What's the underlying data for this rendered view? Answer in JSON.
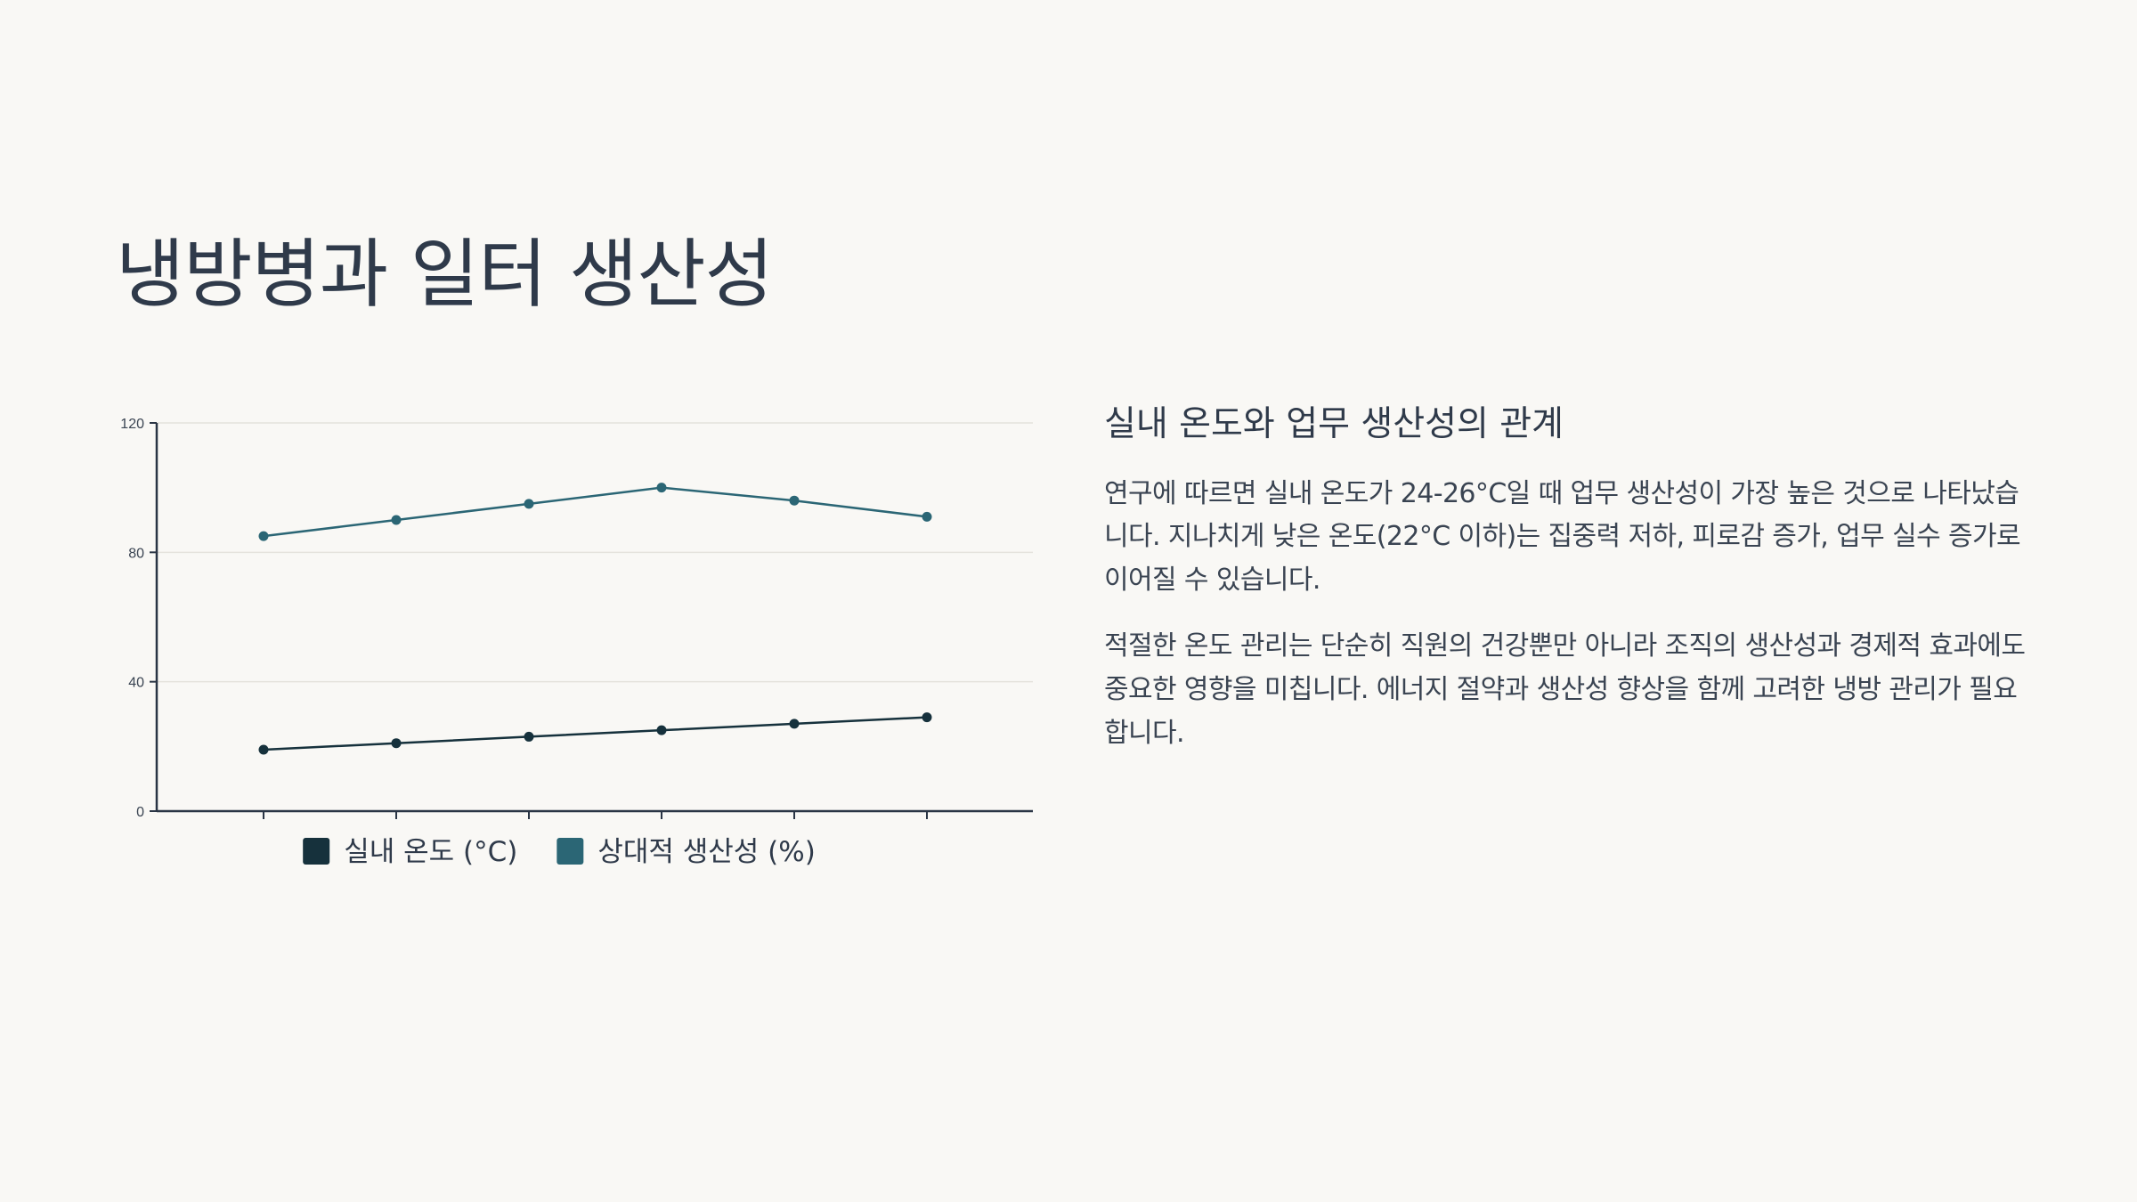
{
  "slide": {
    "title": "냉방병과 일터 생산성"
  },
  "text_panel": {
    "heading": "실내 온도와 업무 생산성의 관계",
    "paragraphs": [
      "연구에 따르면 실내 온도가 24-26°C일 때 업무 생산성이 가장 높은 것으로 나타났습니다. 지나치게 낮은 온도(22°C 이하)는 집중력 저하, 피로감 증가, 업무 실수 증가로 이어질 수 있습니다.",
      "적절한 온도 관리는 단순히 직원의 건강뿐만 아니라 조직의 생산성과 경제적 효과에도 중요한 영향을 미칩니다. 에너지 절약과 생산성 향상을 함께 고려한 냉방 관리가 필요합니다."
    ]
  },
  "colors": {
    "background": "#f9f8f5",
    "text": "#2f3a4a",
    "series_temperature": "#16313c",
    "series_productivity": "#2b6675",
    "grid": "#e4e2dc",
    "axis": "#2a3545"
  },
  "chart_data": {
    "type": "line",
    "x": [
      "",
      "",
      "",
      "",
      "",
      ""
    ],
    "series": [
      {
        "name": "실내 온도 (°C)",
        "values": [
          19,
          21,
          23,
          25,
          27,
          29
        ]
      },
      {
        "name": "상대적 생산성 (%)",
        "values": [
          85,
          90,
          95,
          100,
          96,
          91
        ]
      }
    ],
    "ylim": [
      0,
      120
    ],
    "yticks": [
      0,
      40,
      80,
      120
    ],
    "grid": true,
    "legend": "bottom",
    "title": "",
    "xlabel": "",
    "ylabel": ""
  }
}
